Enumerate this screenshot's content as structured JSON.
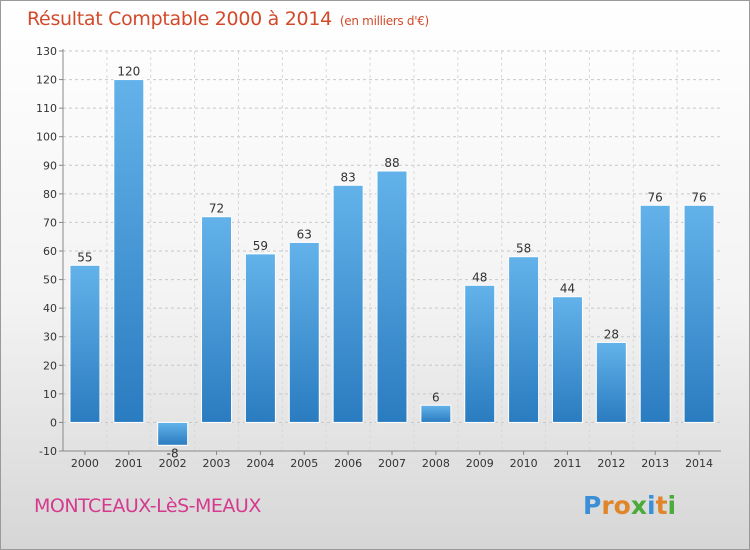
{
  "title": "Résultat Comptable 2000 à 2014",
  "subtitle": "(en milliers d'€)",
  "commune": "MONTCEAUX-LèS-MEAUX",
  "logo": {
    "letters": [
      "P",
      "r",
      "o",
      "x",
      "i",
      "t",
      "i"
    ],
    "colors": [
      "#3a8fd6",
      "#e0862a",
      "#e0862a",
      "#4aaa3a",
      "#3a8fd6",
      "#e0862a",
      "#4aaa3a"
    ]
  },
  "colors": {
    "bar_top": "#63b2ea",
    "bar_bottom": "#2a7cc0",
    "title": "#d24a2a",
    "commune": "#d63a8e"
  },
  "chart_data": {
    "type": "bar",
    "categories": [
      "2000",
      "2001",
      "2002",
      "2003",
      "2004",
      "2005",
      "2006",
      "2007",
      "2008",
      "2009",
      "2010",
      "2011",
      "2012",
      "2013",
      "2014"
    ],
    "values": [
      55,
      120,
      -8,
      72,
      59,
      63,
      83,
      88,
      6,
      48,
      58,
      44,
      28,
      76,
      76
    ],
    "ylim": [
      -10,
      130
    ],
    "yticks": [
      -10,
      0,
      10,
      20,
      30,
      40,
      50,
      60,
      70,
      80,
      90,
      100,
      110,
      120,
      130
    ],
    "grid": true
  }
}
